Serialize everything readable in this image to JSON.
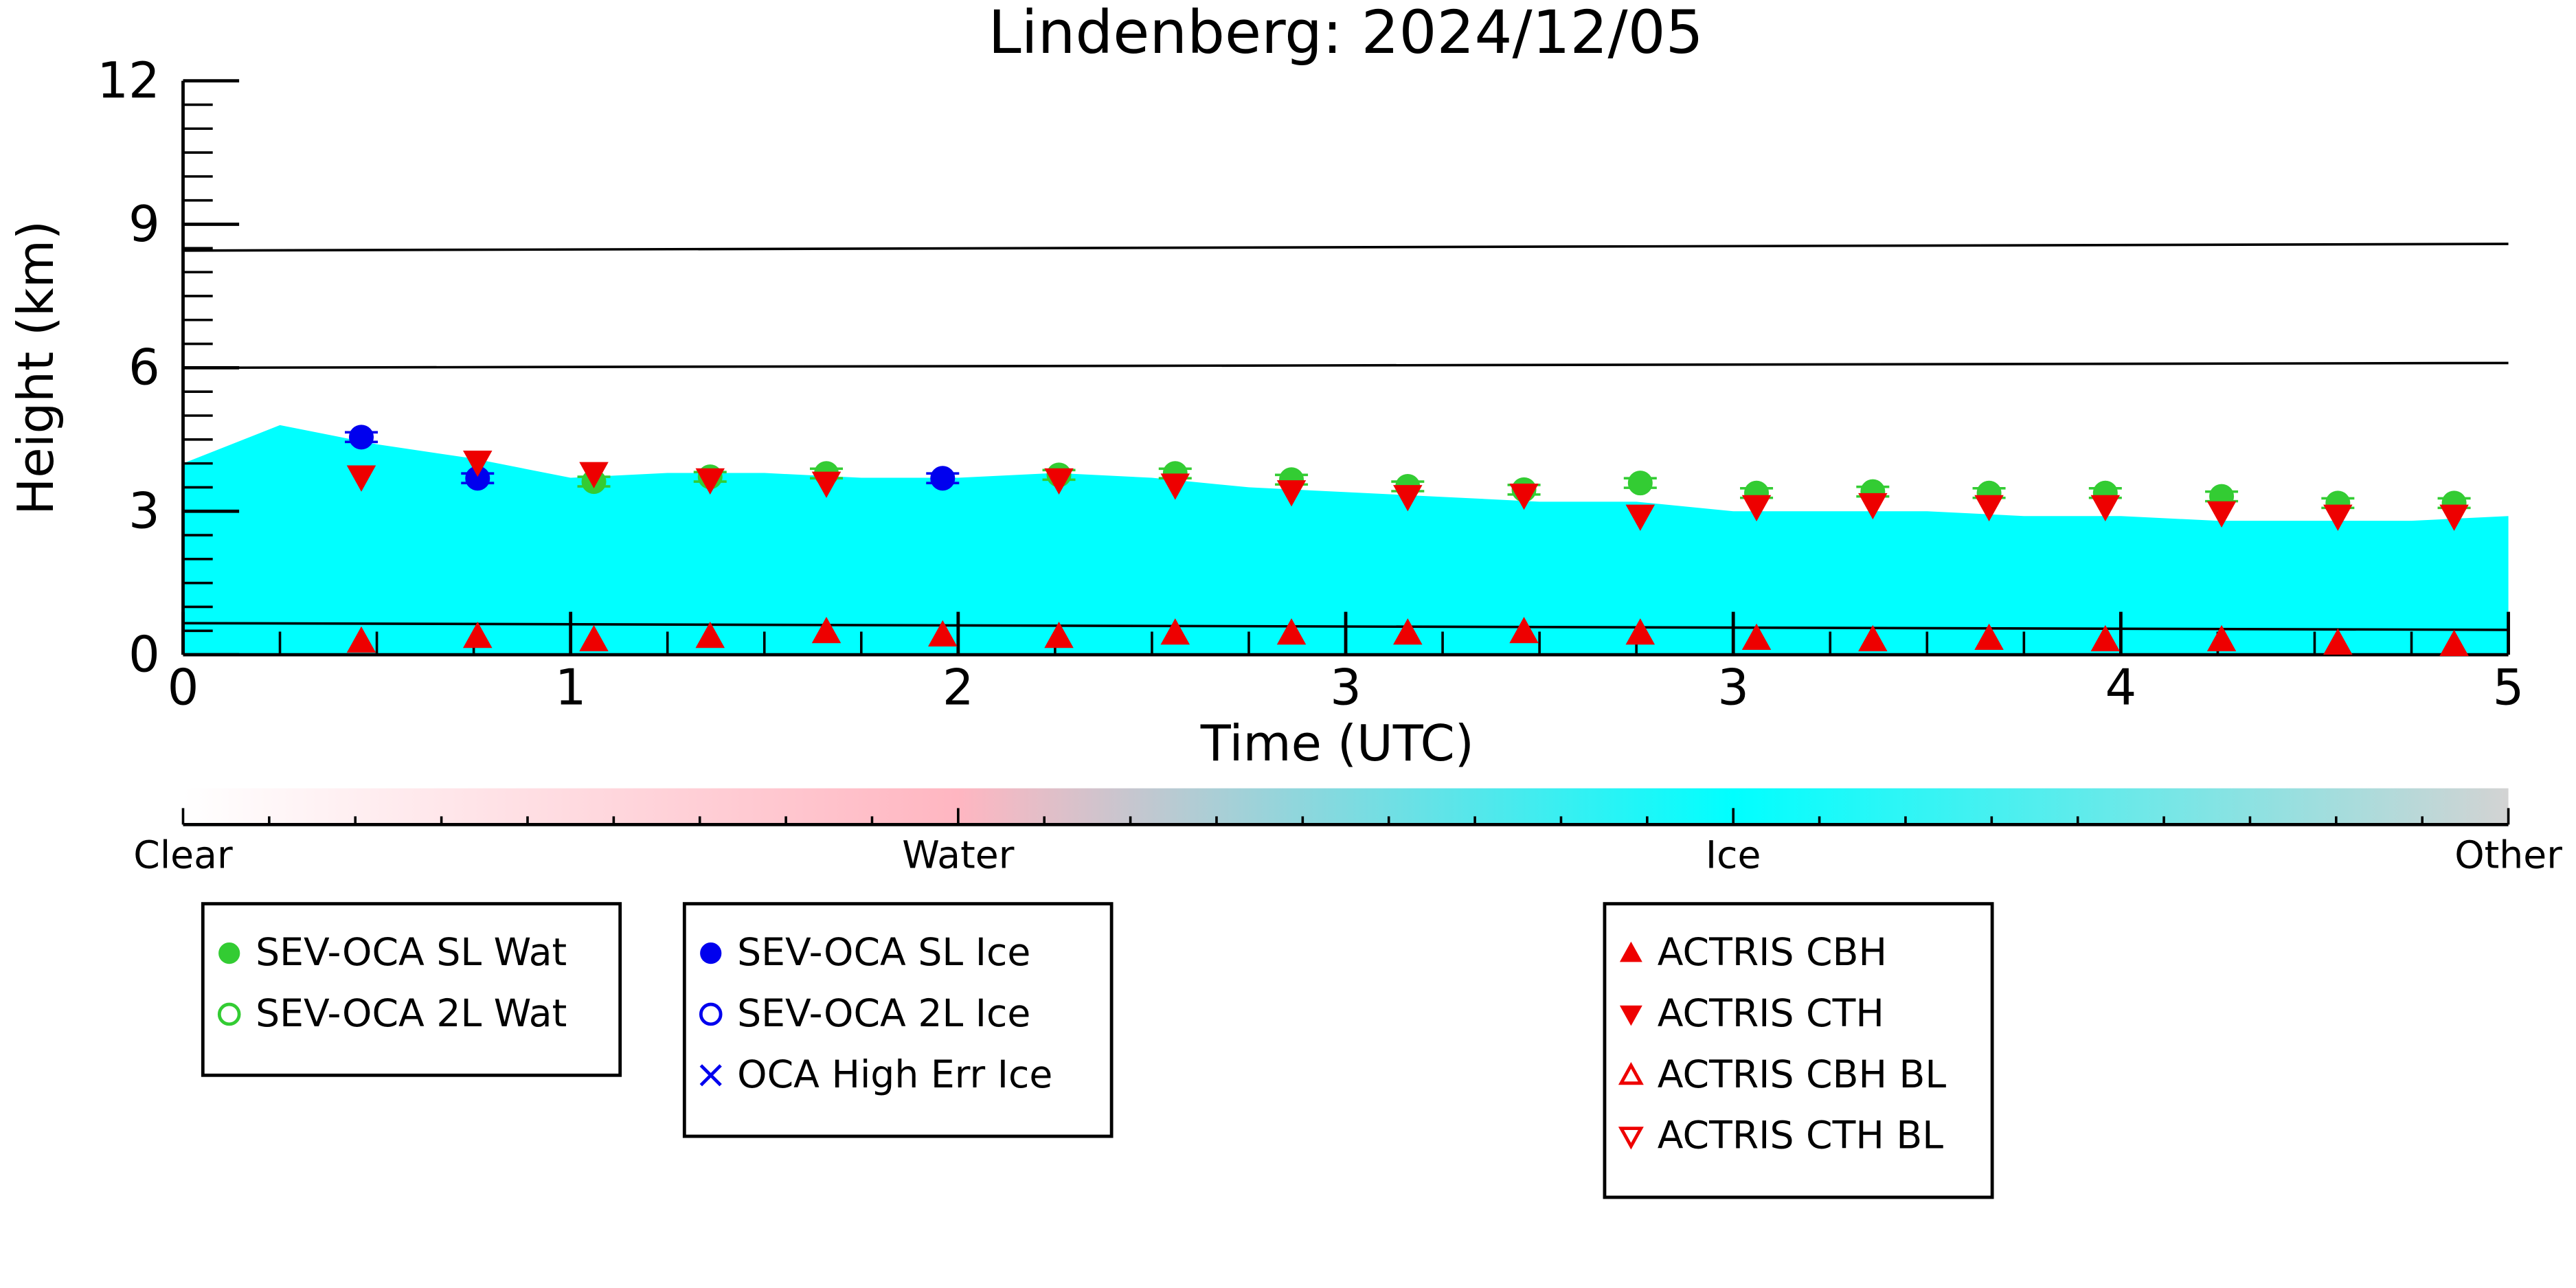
{
  "chart_data": {
    "type": "scatter",
    "title": "Lindenberg: 2024/12/05",
    "xlabel": "Time (UTC)",
    "ylabel": "Height (km)",
    "xlim": [
      0,
      6
    ],
    "xticks": [
      0,
      1,
      2,
      3,
      {
        "value": 4,
        "label": "3"
      },
      {
        "value": 5,
        "label": "4"
      },
      {
        "value": 6,
        "label": "5"
      }
    ],
    "ylim": [
      0,
      12
    ],
    "yticks": [
      0,
      3,
      6,
      9,
      12
    ],
    "area": {
      "color": "#00ffff",
      "x": [
        0,
        0.25,
        0.5,
        0.75,
        1,
        1.25,
        1.5,
        1.75,
        2,
        2.25,
        2.5,
        2.75,
        3,
        3.25,
        3.5,
        3.75,
        4,
        4.25,
        4.5,
        4.75,
        5,
        5.25,
        5.5,
        5.75,
        6
      ],
      "values": [
        4.0,
        4.8,
        4.4,
        4.1,
        3.7,
        3.8,
        3.8,
        3.7,
        3.7,
        3.8,
        3.7,
        3.5,
        3.4,
        3.3,
        3.2,
        3.2,
        3.0,
        3.0,
        3.0,
        2.9,
        2.9,
        2.8,
        2.8,
        2.8,
        2.9
      ]
    },
    "lines": [
      {
        "color": "#000000",
        "x": [
          0,
          6
        ],
        "values": [
          8.45,
          8.59
        ]
      },
      {
        "color": "#000000",
        "x": [
          0,
          6
        ],
        "values": [
          6.0,
          6.1
        ]
      },
      {
        "color": "#000000",
        "x": [
          0,
          6
        ],
        "values": [
          0.66,
          0.52
        ]
      }
    ],
    "x": [
      0.46,
      0.76,
      1.06,
      1.36,
      1.66,
      1.96,
      2.26,
      2.56,
      2.86,
      3.16,
      3.46,
      3.76,
      4.06,
      4.36,
      4.66,
      4.96,
      5.26,
      5.56,
      5.86
    ],
    "series": [
      {
        "name": "SEV-OCA SL Wat",
        "color": "#33cc33",
        "marker": "circle",
        "legend_group": 0,
        "values": [
          null,
          null,
          3.62,
          3.72,
          3.79,
          null,
          3.76,
          3.79,
          3.66,
          3.52,
          3.45,
          3.59,
          3.38,
          3.41,
          3.38,
          3.38,
          3.31,
          3.17,
          3.17
        ],
        "errors": [
          null,
          null,
          0.1,
          0.1,
          0.1,
          null,
          0.1,
          0.1,
          0.1,
          0.1,
          0.1,
          0.1,
          0.1,
          0.1,
          0.1,
          0.1,
          0.1,
          0.1,
          0.1
        ]
      },
      {
        "name": "SEV-OCA 2L Wat",
        "color": "#33cc33",
        "marker": "circle-open",
        "legend_group": 0
      },
      {
        "name": "SEV-OCA SL Ice",
        "color": "#0000ee",
        "marker": "circle",
        "legend_group": 1,
        "values": [
          4.55,
          3.69,
          null,
          null,
          null,
          3.69,
          null,
          null,
          null,
          null,
          null,
          null,
          null,
          null,
          null,
          null,
          null,
          null,
          null
        ],
        "errors": [
          0.1,
          0.1,
          null,
          null,
          null,
          0.1,
          null,
          null,
          null,
          null,
          null,
          null,
          null,
          null,
          null,
          null,
          null,
          null,
          null
        ]
      },
      {
        "name": "SEV-OCA 2L Ice",
        "color": "#0000ee",
        "marker": "circle-open",
        "legend_group": 1
      },
      {
        "name": "OCA High Err Ice",
        "color": "#0000ee",
        "marker": "x",
        "legend_group": 1
      },
      {
        "name": "ACTRIS CBH",
        "color": "#ee0000",
        "marker": "triangle-up",
        "legend_group": 2,
        "values": [
          0.28,
          0.38,
          0.31,
          0.38,
          0.48,
          0.41,
          0.38,
          0.45,
          0.45,
          0.45,
          0.48,
          0.45,
          0.34,
          0.31,
          0.34,
          0.31,
          0.31,
          0.24,
          0.21
        ]
      },
      {
        "name": "ACTRIS CTH",
        "color": "#ee0000",
        "marker": "triangle-down",
        "legend_group": 2,
        "values": [
          3.72,
          4.03,
          3.79,
          3.66,
          3.59,
          null,
          3.66,
          3.55,
          3.41,
          3.31,
          3.34,
          2.9,
          3.1,
          3.14,
          3.1,
          3.1,
          2.97,
          2.9,
          2.9
        ]
      },
      {
        "name": "ACTRIS CBH BL",
        "color": "#ee0000",
        "marker": "triangle-up-open",
        "legend_group": 2
      },
      {
        "name": "ACTRIS CTH BL",
        "color": "#ee0000",
        "marker": "triangle-down-open",
        "legend_group": 2
      }
    ],
    "colorbar": {
      "labels": [
        "Clear",
        "Water",
        "Ice",
        "Other"
      ],
      "colors": [
        "#ffffff",
        "#ffb6c1",
        "#00ffff",
        "#d3d3d3"
      ]
    }
  }
}
